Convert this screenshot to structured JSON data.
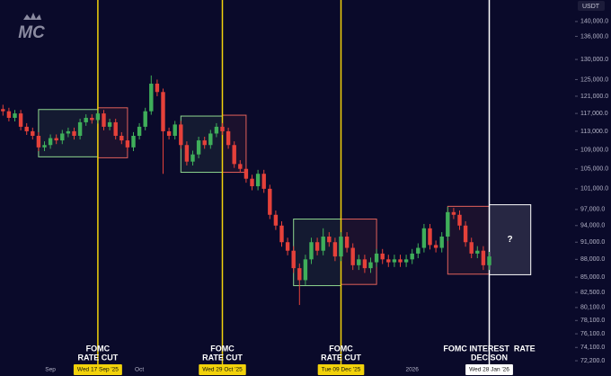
{
  "chart_data": {
    "type": "candlestick",
    "logo": "MC",
    "currency": "USDT",
    "log_scale": true,
    "grid": false,
    "up_color": "#3fae5a",
    "down_color": "#e5413a",
    "ylim": [
      71700,
      146000
    ],
    "yticks": [
      {
        "value": 140000,
        "label": "140,000.0"
      },
      {
        "value": 136000,
        "label": "136,000.0"
      },
      {
        "value": 130000,
        "label": "130,000.0"
      },
      {
        "value": 125000,
        "label": "125,000.0"
      },
      {
        "value": 121000,
        "label": "121,000.0"
      },
      {
        "value": 117000,
        "label": "117,000.0"
      },
      {
        "value": 113000,
        "label": "113,000.0"
      },
      {
        "value": 109000,
        "label": "109,000.0"
      },
      {
        "value": 105000,
        "label": "105,000.0"
      },
      {
        "value": 101000,
        "label": "101,000.0"
      },
      {
        "value": 97000,
        "label": "97,000.0"
      },
      {
        "value": 94000,
        "label": "94,000.0"
      },
      {
        "value": 91000,
        "label": "91,000.0"
      },
      {
        "value": 88000,
        "label": "88,000.0"
      },
      {
        "value": 85000,
        "label": "85,000.0"
      },
      {
        "value": 82500,
        "label": "82,500.0"
      },
      {
        "value": 80100,
        "label": "80,100.0"
      },
      {
        "value": 78100,
        "label": "78,100.0"
      },
      {
        "value": 76100,
        "label": "76,100.0"
      },
      {
        "value": 74100,
        "label": "74,100.0"
      },
      {
        "value": 72200,
        "label": "72,200.0"
      }
    ],
    "categories": [
      null,
      null,
      null,
      null,
      null,
      null,
      null,
      null,
      "Sep",
      null,
      null,
      null,
      null,
      null,
      null,
      null,
      "Wed 17 Sep '25",
      null,
      null,
      null,
      null,
      null,
      null,
      "Oct",
      null,
      null,
      null,
      null,
      null,
      null,
      null,
      null,
      null,
      null,
      null,
      null,
      null,
      "Wed 29 Oct '25",
      null,
      null,
      null,
      null,
      null,
      null,
      null,
      null,
      null,
      null,
      null,
      null,
      null,
      null,
      null,
      null,
      null,
      null,
      null,
      "Tue 09 Dec '25",
      null,
      null,
      null,
      null,
      null,
      null,
      null,
      null,
      null,
      null,
      null,
      "2026",
      null,
      null,
      null,
      null,
      null,
      null,
      null,
      null,
      null,
      null,
      null,
      null,
      "Wed 28 Jan '26"
    ],
    "open": [
      118000,
      117500,
      116000,
      117000,
      114000,
      113000,
      112000,
      109500,
      110000,
      111500,
      111000,
      112500,
      113000,
      112000,
      115000,
      116000,
      115500,
      117000,
      114000,
      115000,
      112000,
      111000,
      109500,
      112000,
      114000,
      117500,
      124000,
      122000,
      113000,
      112000,
      114500,
      110000,
      106500,
      108000,
      111000,
      110000,
      112500,
      114000,
      113000,
      110000,
      106000,
      105000,
      103000,
      101500,
      104000,
      101000,
      96000,
      94000,
      91000,
      89500,
      86500,
      84500,
      88000,
      91000,
      89500,
      92000,
      91000,
      88500,
      92000,
      90000,
      87000,
      88000,
      86500,
      87500,
      89000,
      88000,
      87500,
      88000,
      87500,
      88000,
      89000,
      90000,
      93500,
      90500,
      90000,
      92000,
      96500,
      96000,
      94000,
      91000,
      89000,
      89500,
      87000
    ],
    "high": [
      119000,
      118300,
      117800,
      117800,
      114800,
      113800,
      112800,
      110800,
      112300,
      112300,
      113300,
      113800,
      113800,
      115800,
      116800,
      116800,
      117800,
      117800,
      115800,
      115800,
      112800,
      111800,
      112800,
      114800,
      118300,
      126000,
      125000,
      122800,
      113800,
      115300,
      115300,
      110800,
      108800,
      111800,
      111800,
      113300,
      114800,
      114800,
      113800,
      110800,
      106800,
      105800,
      103800,
      104800,
      104800,
      101800,
      96800,
      94800,
      91800,
      90300,
      87300,
      88800,
      91800,
      91800,
      93500,
      92800,
      91800,
      92800,
      92800,
      90800,
      88800,
      88800,
      88300,
      89800,
      89800,
      88800,
      88800,
      88800,
      88800,
      89800,
      90800,
      94300,
      94300,
      91300,
      92800,
      97500,
      97300,
      96800,
      94800,
      91800,
      90300,
      90300,
      89300
    ],
    "low": [
      116500,
      115200,
      115200,
      113200,
      112200,
      111200,
      108700,
      108700,
      109200,
      110200,
      110200,
      111700,
      111200,
      111200,
      114200,
      114700,
      114700,
      113200,
      113200,
      111200,
      110200,
      108700,
      108700,
      111200,
      113200,
      116700,
      121000,
      104000,
      111200,
      111200,
      109200,
      105700,
      105700,
      107200,
      109200,
      109200,
      111700,
      112200,
      109200,
      105200,
      104200,
      102200,
      100700,
      100700,
      100200,
      95200,
      93200,
      90200,
      88700,
      85700,
      80500,
      83700,
      87200,
      88700,
      88700,
      90200,
      87700,
      87700,
      89200,
      86200,
      86200,
      85700,
      85700,
      86700,
      87200,
      86700,
      86700,
      86700,
      86700,
      87200,
      88200,
      89200,
      89700,
      89200,
      89200,
      91200,
      95200,
      93200,
      90200,
      88200,
      88200,
      86200,
      86200
    ],
    "close": [
      117500,
      116000,
      117000,
      114000,
      113000,
      112000,
      109500,
      110000,
      111500,
      111000,
      112500,
      113000,
      112000,
      115000,
      116000,
      115500,
      117000,
      114000,
      115000,
      112000,
      111000,
      109500,
      112000,
      114000,
      117500,
      124000,
      122000,
      113000,
      112000,
      114500,
      110000,
      106500,
      108000,
      111000,
      110000,
      112500,
      114000,
      113000,
      110000,
      106000,
      105000,
      103000,
      101500,
      104000,
      101000,
      96000,
      94000,
      91000,
      89500,
      86500,
      84500,
      88000,
      91000,
      89500,
      92000,
      91000,
      88500,
      92000,
      90000,
      87000,
      88000,
      86500,
      87500,
      89000,
      88000,
      87500,
      88000,
      87500,
      88000,
      89000,
      90000,
      93500,
      90500,
      90000,
      92000,
      96500,
      96000,
      94000,
      91000,
      89000,
      89500,
      87000,
      88500
    ],
    "zones": [
      {
        "start": 6,
        "end": 16,
        "low": 107500,
        "high": 117900,
        "color": "#8fd68f"
      },
      {
        "start": 16,
        "end": 21,
        "low": 107300,
        "high": 118300,
        "color": "#e0605a"
      },
      {
        "start": 30,
        "end": 37,
        "low": 104300,
        "high": 116400,
        "color": "#8fd68f"
      },
      {
        "start": 37,
        "end": 41,
        "low": 104300,
        "high": 116600,
        "color": "#e0605a"
      },
      {
        "start": 49,
        "end": 57,
        "low": 83600,
        "high": 95200,
        "color": "#8fd68f"
      },
      {
        "start": 57,
        "end": 63,
        "low": 83800,
        "high": 95200,
        "color": "#e0605a"
      },
      {
        "start": 75,
        "end": 82,
        "low": 85500,
        "high": 97600,
        "color": "#e0605a"
      },
      {
        "start": 82,
        "end": 89,
        "low": 85400,
        "high": 97900,
        "color": "#ffffff",
        "label": "?"
      }
    ],
    "events": [
      {
        "at": 16,
        "lines": [
          "FOMC",
          "RATE CUT"
        ],
        "color": "#f2d20b"
      },
      {
        "at": 37,
        "lines": [
          "FOMC",
          "RATE CUT"
        ],
        "color": "#f2d20b"
      },
      {
        "at": 57,
        "lines": [
          "FOMC",
          "RATE CUT"
        ],
        "color": "#f2d20b"
      },
      {
        "at": 82,
        "lines": [
          "FOMC INTEREST  RATE",
          "DECISON"
        ],
        "color": "#ffffff"
      }
    ]
  }
}
